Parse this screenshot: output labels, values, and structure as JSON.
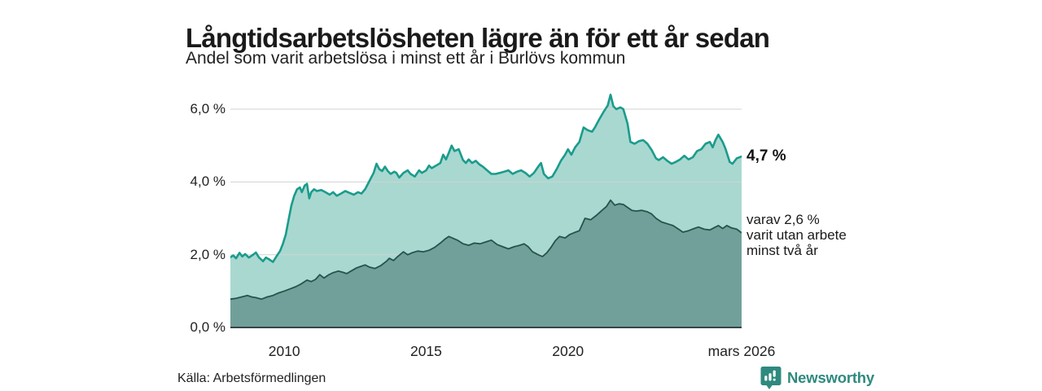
{
  "header": {
    "title": "Långtidsarbetslösheten lägre än för ett år sedan",
    "subtitle": "Andel som varit arbetslösa i minst ett år i Burlövs kommun"
  },
  "footer": {
    "source": "Källa: Arbetsförmedlingen",
    "brand": "Newsworthy"
  },
  "colors": {
    "accent_line": "#1a9c8c",
    "fill_light": "#a9d8d0",
    "fill_dark": "#71a09a",
    "line_dark": "#24544d",
    "axis": "#3a4446",
    "gridline": "#cfd4d3",
    "brand": "#2e8a7e",
    "text": "#1a1a1a"
  },
  "chart_data": {
    "type": "area",
    "title": "Långtidsarbetslösheten lägre än för ett år sedan",
    "subtitle": "Andel som varit arbetslösa i minst ett år i Burlövs kommun",
    "unit": "%",
    "grid": "horizontal",
    "legend_position": "right-annotations",
    "x_domain": [
      2008.1,
      2026.12
    ],
    "ylim": [
      0,
      6.65
    ],
    "y_ticks": [
      {
        "v": 0,
        "label": "0,0 %"
      },
      {
        "v": 2,
        "label": "2,0 %"
      },
      {
        "v": 4,
        "label": "4,0 %"
      },
      {
        "v": 6,
        "label": "6,0 %"
      }
    ],
    "x_ticks": [
      {
        "v": 2010,
        "label": "2010"
      },
      {
        "v": 2015,
        "label": "2015"
      },
      {
        "v": 2020,
        "label": "2020"
      },
      {
        "v": 2026.12,
        "label": "mars 2026"
      }
    ],
    "annotations": {
      "latest_total": {
        "label": "4,7 %",
        "value": 4.7
      },
      "latest_two_years": {
        "value": 2.6,
        "lines": [
          "varav 2,6 %",
          "varit utan arbete",
          "minst två år"
        ]
      }
    },
    "series": [
      {
        "name": "Arbetslösa minst ett år (totalt)",
        "points": [
          [
            2008.1,
            1.93
          ],
          [
            2008.2,
            1.98
          ],
          [
            2008.3,
            1.9
          ],
          [
            2008.42,
            2.05
          ],
          [
            2008.52,
            1.95
          ],
          [
            2008.62,
            2.02
          ],
          [
            2008.75,
            1.92
          ],
          [
            2008.9,
            2.0
          ],
          [
            2009.0,
            2.06
          ],
          [
            2009.1,
            1.93
          ],
          [
            2009.25,
            1.82
          ],
          [
            2009.35,
            1.92
          ],
          [
            2009.45,
            1.88
          ],
          [
            2009.6,
            1.8
          ],
          [
            2009.72,
            1.95
          ],
          [
            2009.85,
            2.1
          ],
          [
            2009.95,
            2.3
          ],
          [
            2010.05,
            2.55
          ],
          [
            2010.15,
            2.95
          ],
          [
            2010.25,
            3.35
          ],
          [
            2010.35,
            3.62
          ],
          [
            2010.45,
            3.8
          ],
          [
            2010.55,
            3.85
          ],
          [
            2010.62,
            3.72
          ],
          [
            2010.72,
            3.9
          ],
          [
            2010.8,
            3.95
          ],
          [
            2010.88,
            3.55
          ],
          [
            2010.95,
            3.72
          ],
          [
            2011.05,
            3.8
          ],
          [
            2011.15,
            3.75
          ],
          [
            2011.3,
            3.78
          ],
          [
            2011.45,
            3.72
          ],
          [
            2011.6,
            3.65
          ],
          [
            2011.72,
            3.72
          ],
          [
            2011.85,
            3.62
          ],
          [
            2012.0,
            3.68
          ],
          [
            2012.15,
            3.75
          ],
          [
            2012.3,
            3.7
          ],
          [
            2012.45,
            3.65
          ],
          [
            2012.6,
            3.72
          ],
          [
            2012.72,
            3.68
          ],
          [
            2012.85,
            3.8
          ],
          [
            2012.95,
            3.95
          ],
          [
            2013.05,
            4.1
          ],
          [
            2013.15,
            4.25
          ],
          [
            2013.25,
            4.5
          ],
          [
            2013.35,
            4.35
          ],
          [
            2013.45,
            4.3
          ],
          [
            2013.55,
            4.42
          ],
          [
            2013.65,
            4.3
          ],
          [
            2013.75,
            4.22
          ],
          [
            2013.88,
            4.28
          ],
          [
            2013.95,
            4.25
          ],
          [
            2014.05,
            4.12
          ],
          [
            2014.2,
            4.25
          ],
          [
            2014.35,
            4.32
          ],
          [
            2014.45,
            4.22
          ],
          [
            2014.6,
            4.15
          ],
          [
            2014.75,
            4.32
          ],
          [
            2014.85,
            4.25
          ],
          [
            2015.0,
            4.32
          ],
          [
            2015.1,
            4.45
          ],
          [
            2015.2,
            4.38
          ],
          [
            2015.35,
            4.45
          ],
          [
            2015.5,
            4.52
          ],
          [
            2015.6,
            4.75
          ],
          [
            2015.7,
            4.62
          ],
          [
            2015.8,
            4.8
          ],
          [
            2015.9,
            5.0
          ],
          [
            2016.0,
            4.85
          ],
          [
            2016.15,
            4.9
          ],
          [
            2016.3,
            4.6
          ],
          [
            2016.4,
            4.52
          ],
          [
            2016.5,
            4.62
          ],
          [
            2016.62,
            4.52
          ],
          [
            2016.75,
            4.58
          ],
          [
            2016.88,
            4.48
          ],
          [
            2017.0,
            4.42
          ],
          [
            2017.15,
            4.32
          ],
          [
            2017.3,
            4.22
          ],
          [
            2017.45,
            4.22
          ],
          [
            2017.6,
            4.25
          ],
          [
            2017.75,
            4.28
          ],
          [
            2017.9,
            4.32
          ],
          [
            2018.05,
            4.22
          ],
          [
            2018.2,
            4.28
          ],
          [
            2018.35,
            4.32
          ],
          [
            2018.5,
            4.25
          ],
          [
            2018.65,
            4.15
          ],
          [
            2018.8,
            4.25
          ],
          [
            2018.95,
            4.42
          ],
          [
            2019.05,
            4.52
          ],
          [
            2019.15,
            4.22
          ],
          [
            2019.3,
            4.1
          ],
          [
            2019.45,
            4.15
          ],
          [
            2019.6,
            4.35
          ],
          [
            2019.75,
            4.58
          ],
          [
            2019.9,
            4.75
          ],
          [
            2020.0,
            4.9
          ],
          [
            2020.12,
            4.75
          ],
          [
            2020.25,
            4.95
          ],
          [
            2020.4,
            5.1
          ],
          [
            2020.55,
            5.5
          ],
          [
            2020.7,
            5.42
          ],
          [
            2020.85,
            5.38
          ],
          [
            2020.95,
            5.5
          ],
          [
            2021.1,
            5.72
          ],
          [
            2021.25,
            5.92
          ],
          [
            2021.4,
            6.1
          ],
          [
            2021.5,
            6.4
          ],
          [
            2021.6,
            6.08
          ],
          [
            2021.7,
            6.0
          ],
          [
            2021.85,
            6.05
          ],
          [
            2021.95,
            6.0
          ],
          [
            2022.1,
            5.6
          ],
          [
            2022.2,
            5.1
          ],
          [
            2022.35,
            5.05
          ],
          [
            2022.5,
            5.12
          ],
          [
            2022.65,
            5.15
          ],
          [
            2022.8,
            5.05
          ],
          [
            2022.95,
            4.88
          ],
          [
            2023.1,
            4.65
          ],
          [
            2023.2,
            4.6
          ],
          [
            2023.35,
            4.68
          ],
          [
            2023.5,
            4.58
          ],
          [
            2023.65,
            4.5
          ],
          [
            2023.8,
            4.55
          ],
          [
            2023.95,
            4.62
          ],
          [
            2024.1,
            4.72
          ],
          [
            2024.25,
            4.62
          ],
          [
            2024.4,
            4.68
          ],
          [
            2024.55,
            4.85
          ],
          [
            2024.7,
            4.9
          ],
          [
            2024.85,
            5.05
          ],
          [
            2025.0,
            5.1
          ],
          [
            2025.1,
            4.95
          ],
          [
            2025.2,
            5.15
          ],
          [
            2025.3,
            5.3
          ],
          [
            2025.45,
            5.1
          ],
          [
            2025.55,
            4.92
          ],
          [
            2025.7,
            4.55
          ],
          [
            2025.8,
            4.5
          ],
          [
            2025.95,
            4.65
          ],
          [
            2026.12,
            4.7
          ]
        ]
      },
      {
        "name": "varav utan arbete minst två år",
        "points": [
          [
            2008.1,
            0.78
          ],
          [
            2008.3,
            0.8
          ],
          [
            2008.5,
            0.84
          ],
          [
            2008.7,
            0.88
          ],
          [
            2008.85,
            0.84
          ],
          [
            2009.0,
            0.82
          ],
          [
            2009.2,
            0.78
          ],
          [
            2009.4,
            0.84
          ],
          [
            2009.6,
            0.88
          ],
          [
            2009.8,
            0.95
          ],
          [
            2010.0,
            1.0
          ],
          [
            2010.2,
            1.06
          ],
          [
            2010.4,
            1.12
          ],
          [
            2010.6,
            1.2
          ],
          [
            2010.8,
            1.3
          ],
          [
            2010.95,
            1.26
          ],
          [
            2011.1,
            1.32
          ],
          [
            2011.25,
            1.45
          ],
          [
            2011.4,
            1.36
          ],
          [
            2011.55,
            1.44
          ],
          [
            2011.7,
            1.5
          ],
          [
            2011.9,
            1.55
          ],
          [
            2012.05,
            1.52
          ],
          [
            2012.2,
            1.48
          ],
          [
            2012.35,
            1.55
          ],
          [
            2012.55,
            1.64
          ],
          [
            2012.7,
            1.68
          ],
          [
            2012.85,
            1.72
          ],
          [
            2013.0,
            1.66
          ],
          [
            2013.2,
            1.62
          ],
          [
            2013.4,
            1.7
          ],
          [
            2013.6,
            1.82
          ],
          [
            2013.7,
            1.9
          ],
          [
            2013.85,
            1.84
          ],
          [
            2014.0,
            1.95
          ],
          [
            2014.2,
            2.08
          ],
          [
            2014.35,
            2.0
          ],
          [
            2014.5,
            2.05
          ],
          [
            2014.7,
            2.1
          ],
          [
            2014.9,
            2.08
          ],
          [
            2015.1,
            2.12
          ],
          [
            2015.3,
            2.2
          ],
          [
            2015.5,
            2.32
          ],
          [
            2015.65,
            2.42
          ],
          [
            2015.8,
            2.5
          ],
          [
            2015.95,
            2.45
          ],
          [
            2016.1,
            2.4
          ],
          [
            2016.3,
            2.3
          ],
          [
            2016.5,
            2.26
          ],
          [
            2016.7,
            2.32
          ],
          [
            2016.9,
            2.3
          ],
          [
            2017.1,
            2.35
          ],
          [
            2017.3,
            2.4
          ],
          [
            2017.5,
            2.28
          ],
          [
            2017.7,
            2.22
          ],
          [
            2017.9,
            2.16
          ],
          [
            2018.1,
            2.22
          ],
          [
            2018.3,
            2.26
          ],
          [
            2018.45,
            2.3
          ],
          [
            2018.6,
            2.22
          ],
          [
            2018.75,
            2.08
          ],
          [
            2018.95,
            2.0
          ],
          [
            2019.1,
            1.95
          ],
          [
            2019.25,
            2.05
          ],
          [
            2019.4,
            2.2
          ],
          [
            2019.55,
            2.38
          ],
          [
            2019.7,
            2.5
          ],
          [
            2019.9,
            2.46
          ],
          [
            2020.05,
            2.55
          ],
          [
            2020.2,
            2.6
          ],
          [
            2020.4,
            2.66
          ],
          [
            2020.6,
            3.0
          ],
          [
            2020.8,
            2.96
          ],
          [
            2021.0,
            3.08
          ],
          [
            2021.2,
            3.22
          ],
          [
            2021.35,
            3.32
          ],
          [
            2021.5,
            3.5
          ],
          [
            2021.65,
            3.36
          ],
          [
            2021.8,
            3.4
          ],
          [
            2021.95,
            3.38
          ],
          [
            2022.1,
            3.3
          ],
          [
            2022.25,
            3.22
          ],
          [
            2022.4,
            3.2
          ],
          [
            2022.6,
            3.22
          ],
          [
            2022.8,
            3.18
          ],
          [
            2022.95,
            3.12
          ],
          [
            2023.1,
            3.0
          ],
          [
            2023.3,
            2.9
          ],
          [
            2023.5,
            2.85
          ],
          [
            2023.7,
            2.8
          ],
          [
            2023.9,
            2.7
          ],
          [
            2024.05,
            2.62
          ],
          [
            2024.25,
            2.66
          ],
          [
            2024.45,
            2.72
          ],
          [
            2024.6,
            2.76
          ],
          [
            2024.8,
            2.7
          ],
          [
            2025.0,
            2.68
          ],
          [
            2025.15,
            2.74
          ],
          [
            2025.3,
            2.8
          ],
          [
            2025.45,
            2.72
          ],
          [
            2025.6,
            2.8
          ],
          [
            2025.75,
            2.74
          ],
          [
            2025.95,
            2.7
          ],
          [
            2026.12,
            2.6
          ]
        ]
      }
    ]
  }
}
